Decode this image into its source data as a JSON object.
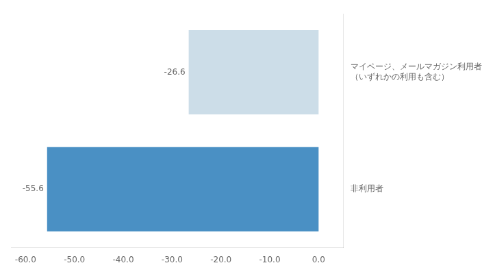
{
  "chart_data": {
    "type": "bar",
    "orientation": "horizontal",
    "categories": [
      "非利用者",
      "マイページ、メールマガジン利用者\n（いずれかの利用も含む）"
    ],
    "values": [
      -55.6,
      -26.6
    ],
    "colors": [
      "#4a90c4",
      "#ccdde8"
    ],
    "xlim": [
      -63,
      5
    ],
    "xticks": [
      {
        "value": -60,
        "label": "-60.0"
      },
      {
        "value": -50,
        "label": "-50.0"
      },
      {
        "value": -40,
        "label": "-40.0"
      },
      {
        "value": -30,
        "label": "-30.0"
      },
      {
        "value": -20,
        "label": "-20.0"
      },
      {
        "value": -10,
        "label": "-10.0"
      },
      {
        "value": 0,
        "label": "0.0"
      }
    ],
    "data_labels": true,
    "grid": false
  }
}
